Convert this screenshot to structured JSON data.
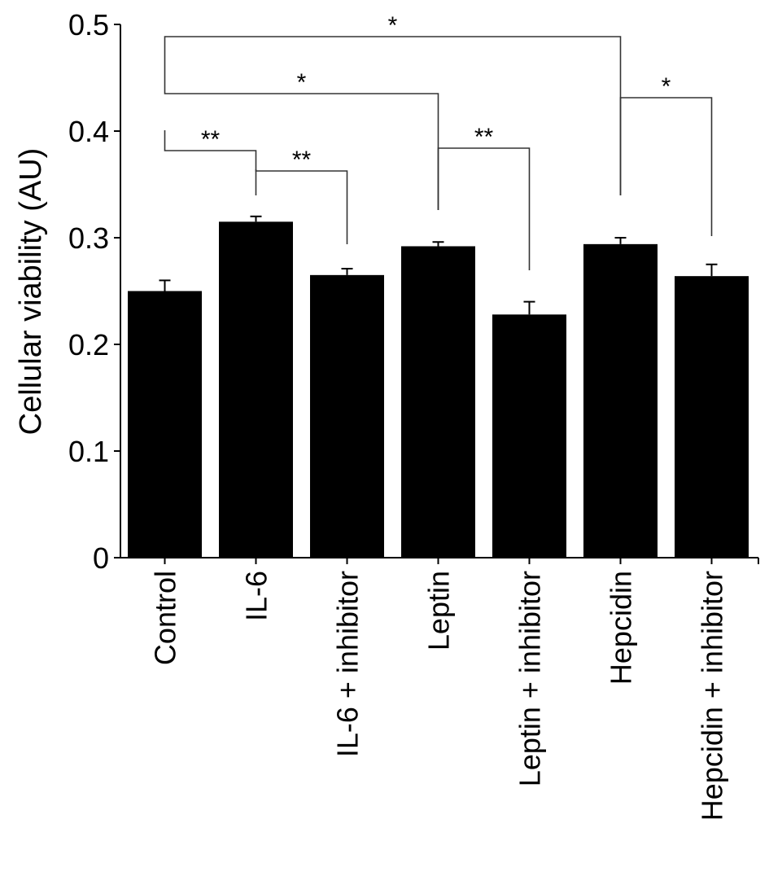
{
  "chart_data": {
    "type": "bar",
    "title": "",
    "xlabel": "",
    "ylabel": "Cellular viability (AU)",
    "ylim": [
      0,
      0.5
    ],
    "yticks": [
      {
        "value": 0,
        "label": "0"
      },
      {
        "value": 0.1,
        "label": "0.1"
      },
      {
        "value": 0.2,
        "label": "0.2"
      },
      {
        "value": 0.3,
        "label": "0.3"
      },
      {
        "value": 0.4,
        "label": "0.4"
      },
      {
        "value": 0.5,
        "label": "0.5"
      }
    ],
    "categories": [
      "Control",
      "IL-6",
      "IL-6 + inhibitor",
      "Leptin",
      "Leptin + inhibitor",
      "Hepcidin",
      "Hepcidin + inhibitor"
    ],
    "values": [
      0.25,
      0.315,
      0.265,
      0.292,
      0.228,
      0.294,
      0.264
    ],
    "errors": [
      0.01,
      0.005,
      0.006,
      0.004,
      0.012,
      0.006,
      0.011
    ],
    "bar_color": "#000000",
    "grid": false,
    "legend": "none",
    "significance": [
      {
        "from": 0,
        "to": 5,
        "label": "*"
      },
      {
        "from": 0,
        "to": 3,
        "label": "*"
      },
      {
        "from": 5,
        "to": 6,
        "label": "*"
      },
      {
        "from": 0,
        "to": 1,
        "label": "**"
      },
      {
        "from": 1,
        "to": 2,
        "label": "**"
      },
      {
        "from": 3,
        "to": 4,
        "label": "**"
      }
    ]
  }
}
